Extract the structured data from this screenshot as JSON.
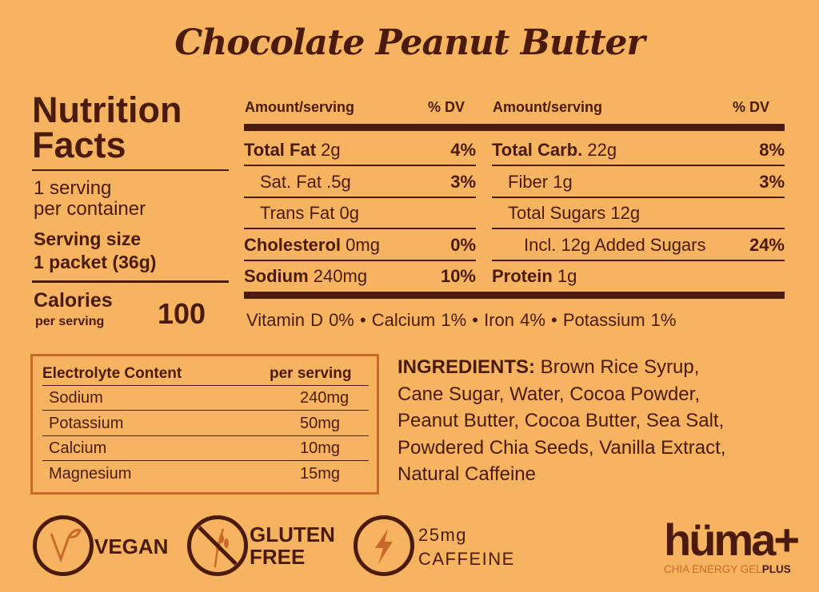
{
  "title": "Chocolate Peanut Butter",
  "facts": {
    "heading_1": "Nutrition",
    "heading_2": "Facts",
    "servings_1": "1 serving",
    "servings_2": "per container",
    "serving_size_1": "Serving size",
    "serving_size_2": "1 packet (36g)",
    "calories_label": "Calories",
    "calories_sub": "per serving",
    "calories_value": "100"
  },
  "table": {
    "header_amount": "Amount/serving",
    "header_dv": "% DV",
    "left": [
      {
        "name": "Total Fat",
        "amount": "2g",
        "dv": "4%",
        "bold": true,
        "indent": false
      },
      {
        "name": "Sat. Fat",
        "amount": ".5g",
        "dv": "3%",
        "bold": false,
        "indent": true
      },
      {
        "name": "Trans Fat",
        "amount": "0g",
        "dv": "",
        "bold": false,
        "indent": true
      },
      {
        "name": "Cholesterol",
        "amount": "0mg",
        "dv": "0%",
        "bold": true,
        "indent": false
      },
      {
        "name": "Sodium",
        "amount": "240mg",
        "dv": "10%",
        "bold": true,
        "indent": false
      }
    ],
    "right": [
      {
        "name": "Total Carb.",
        "amount": "22g",
        "dv": "8%",
        "bold": true,
        "indent": false
      },
      {
        "name": "Fiber",
        "amount": "1g",
        "dv": "3%",
        "bold": false,
        "indent": true
      },
      {
        "name": "Total Sugars",
        "amount": "12g",
        "dv": "",
        "bold": false,
        "indent": true
      },
      {
        "name": "Incl. 12g Added Sugars",
        "amount": "",
        "dv": "24%",
        "bold": false,
        "indent": "deep"
      },
      {
        "name": "Protein",
        "amount": "1g",
        "dv": "",
        "bold": true,
        "indent": false
      }
    ],
    "vitamins": "Vitamin D 0%  •  Calcium 1%  •  Iron 4%  •  Potassium 1%"
  },
  "electrolytes": {
    "header": "Electrolyte Content",
    "header_value": "per serving",
    "rows": [
      {
        "name": "Sodium",
        "value": "240mg"
      },
      {
        "name": "Potassium",
        "value": "50mg"
      },
      {
        "name": "Calcium",
        "value": "10mg"
      },
      {
        "name": "Magnesium",
        "value": "15mg"
      }
    ]
  },
  "ingredients": {
    "label": "INGREDIENTS:",
    "lines": [
      " Brown Rice Syrup,",
      "Cane Sugar, Water, Cocoa Powder,",
      "Peanut Butter, Cocoa Butter, Sea Salt,",
      "Powdered Chia Seeds, Vanilla Extract,",
      "Natural Caffeine"
    ]
  },
  "badges": {
    "vegan": "VEGAN",
    "gluten_1": "GLUTEN",
    "gluten_2": "FREE",
    "caffeine_1": "25mg",
    "caffeine_2": "CAFFEINE",
    "vegan_icon": "vegan-v-leaf-icon",
    "gluten_icon": "no-wheat-icon",
    "caffeine_icon": "lightning-bolt-icon"
  },
  "brand": {
    "logo": "hüma+",
    "tagline_1": "CHIA ENERGY GEL",
    "tagline_2": "PLUS"
  },
  "colors": {
    "background": "#f6b461",
    "text": "#4a1a0c",
    "accent": "#c96a2a"
  }
}
